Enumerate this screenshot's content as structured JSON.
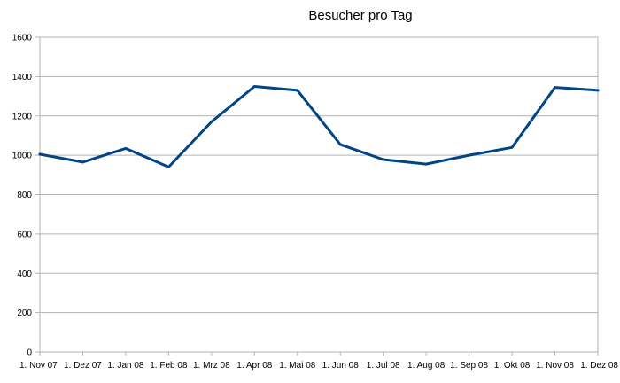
{
  "chart_data": {
    "type": "line",
    "title": "Besucher pro Tag",
    "xlabel": "",
    "ylabel": "",
    "categories": [
      "1. Nov 07",
      "1. Dez 07",
      "1. Jan 08",
      "1. Feb 08",
      "1. Mrz 08",
      "1. Apr 08",
      "1. Mai 08",
      "1. Jun 08",
      "1. Jul 08",
      "1. Aug 08",
      "1. Sep 08",
      "1. Okt 08",
      "1. Nov 08",
      "1. Dez 08"
    ],
    "series": [
      {
        "values": [
          1005,
          965,
          1035,
          940,
          1170,
          1350,
          1330,
          1055,
          978,
          955,
          1000,
          1040,
          1345,
          1330
        ]
      }
    ],
    "ylim": [
      0,
      1600
    ],
    "yticks": [
      0,
      200,
      400,
      600,
      800,
      1000,
      1200,
      1400,
      1600
    ],
    "grid": true,
    "legend": "none",
    "colors": {
      "series": "#004586",
      "grid": "#b3b3b3"
    }
  }
}
